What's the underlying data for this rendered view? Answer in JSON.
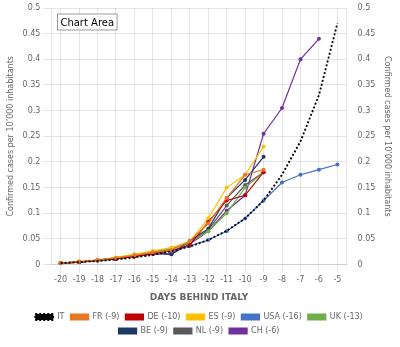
{
  "chart_data": {
    "type": "line",
    "xlabel": "DAYS BEHIND ITALY",
    "ylabel": "Confirmed cases per 10’000 inhabitants",
    "y2label": "Confirmed cases per 10’000 inhabitants",
    "xlim": [
      -20.5,
      -4.5
    ],
    "ylim": [
      0,
      0.5
    ],
    "y2lim": [
      0,
      0.5
    ],
    "xticks": [
      -20,
      -19,
      -18,
      -17,
      -16,
      -15,
      -14,
      -13,
      -12,
      -11,
      -10,
      -9,
      -8,
      -7,
      -6,
      -5
    ],
    "yticks": [
      0,
      0.05,
      0.1,
      0.15,
      0.2,
      0.25,
      0.3,
      0.35,
      0.4,
      0.45,
      0.5
    ],
    "y2ticks": [
      0,
      0.05,
      0.1,
      0.15,
      0.2,
      0.25,
      0.3,
      0.35,
      0.4,
      0.45,
      0.5
    ],
    "grid": true,
    "legend": "bottom",
    "annotations": [
      "Chart Area"
    ],
    "series": [
      {
        "name": "IT",
        "color": "black",
        "line_style": "dotted",
        "marker": "none",
        "x": [
          -20,
          -19,
          -18,
          -17,
          -16,
          -15,
          -14,
          -13,
          -12,
          -11,
          -10,
          -9,
          -8,
          -7,
          -6,
          -5
        ],
        "values": [
          0.003,
          0.005,
          0.007,
          0.01,
          0.014,
          0.019,
          0.026,
          0.035,
          0.048,
          0.066,
          0.09,
          0.125,
          0.175,
          0.24,
          0.33,
          0.47
        ]
      },
      {
        "name": "FR (-9)",
        "color": "#e87722",
        "line_style": "solid",
        "marker": "o",
        "x": [
          -20,
          -19,
          -18,
          -17,
          -16,
          -15,
          -14,
          -13,
          -12,
          -11,
          -10,
          -9
        ],
        "values": [
          0.003,
          0.006,
          0.009,
          0.013,
          0.018,
          0.024,
          0.028,
          0.046,
          0.08,
          0.13,
          0.175,
          0.185
        ]
      },
      {
        "name": "DE (-10)",
        "color": "#c00000",
        "line_style": "solid",
        "marker": "o",
        "x": [
          -20,
          -19,
          -18,
          -17,
          -16,
          -15,
          -14,
          -13,
          -12,
          -11,
          -10,
          -9
        ],
        "values": [
          0.003,
          0.005,
          0.008,
          0.011,
          0.016,
          0.021,
          0.027,
          0.038,
          0.083,
          0.125,
          0.135,
          0.18
        ]
      },
      {
        "name": "ES (-9)",
        "color": "#ffc000",
        "line_style": "solid",
        "marker": "o",
        "x": [
          -20,
          -19,
          -18,
          -17,
          -16,
          -15,
          -14,
          -13,
          -12,
          -11,
          -10,
          -9
        ],
        "values": [
          0.003,
          0.006,
          0.009,
          0.014,
          0.02,
          0.027,
          0.033,
          0.045,
          0.09,
          0.15,
          0.175,
          0.23
        ]
      },
      {
        "name": "USA (-16)",
        "color": "#4472c4",
        "line_style": "solid",
        "marker": "o",
        "x": [
          -20,
          -19,
          -18,
          -17,
          -16,
          -15,
          -14,
          -13,
          -12,
          -11,
          -10,
          -9,
          -8,
          -7,
          -6,
          -5
        ],
        "values": [
          0.003,
          0.005,
          0.008,
          0.011,
          0.016,
          0.021,
          0.027,
          0.036,
          0.048,
          0.065,
          0.09,
          0.125,
          0.16,
          0.175,
          0.185,
          0.195
        ]
      },
      {
        "name": "UK (-13)",
        "color": "#70ad47",
        "line_style": "solid",
        "marker": "o",
        "x": [
          -20,
          -19,
          -18,
          -17,
          -16,
          -15,
          -14,
          -13,
          -12,
          -11,
          -10,
          -9
        ],
        "values": [
          0.003,
          0.005,
          0.009,
          0.013,
          0.019,
          0.025,
          0.031,
          0.043,
          0.065,
          0.1,
          0.15,
          0.18
        ]
      },
      {
        "name": "BE (-9)",
        "color": "#1f3864",
        "line_style": "solid",
        "marker": "o",
        "x": [
          -20,
          -19,
          -18,
          -17,
          -16,
          -15,
          -14,
          -13,
          -12,
          -11,
          -10,
          -9
        ],
        "values": [
          0.003,
          0.005,
          0.009,
          0.013,
          0.019,
          0.025,
          0.02,
          0.046,
          0.07,
          0.13,
          0.165,
          0.21
        ]
      },
      {
        "name": "NL (-9)",
        "color": "#595959",
        "line_style": "solid",
        "marker": "o",
        "x": [
          -20,
          -19,
          -18,
          -17,
          -16,
          -15,
          -14,
          -13,
          -12,
          -11,
          -10,
          -9
        ],
        "values": [
          0.003,
          0.005,
          0.009,
          0.012,
          0.018,
          0.024,
          0.03,
          0.042,
          0.068,
          0.115,
          0.155,
          0.18
        ]
      },
      {
        "name": "CH (-6)",
        "color": "#7030a0",
        "line_style": "solid",
        "marker": "o",
        "x": [
          -20,
          -19,
          -18,
          -17,
          -16,
          -15,
          -14,
          -13,
          -12,
          -11,
          -10,
          -9,
          -8,
          -7,
          -6
        ],
        "values": [
          0.003,
          0.005,
          0.008,
          0.011,
          0.016,
          0.021,
          0.02,
          0.04,
          0.065,
          0.105,
          0.135,
          0.255,
          0.305,
          0.4,
          0.44
        ]
      }
    ]
  }
}
